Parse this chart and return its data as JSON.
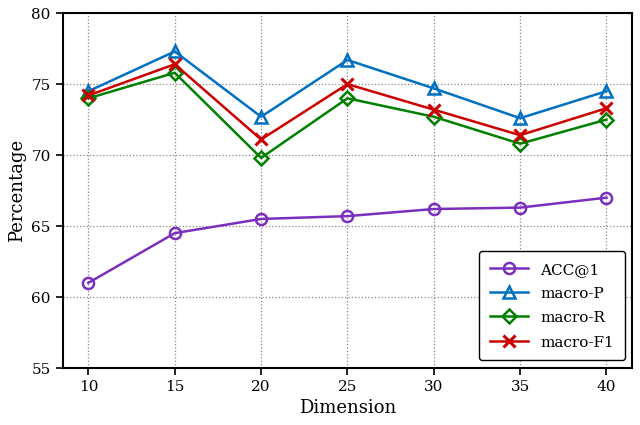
{
  "x": [
    10,
    15,
    20,
    25,
    30,
    35,
    40
  ],
  "acc1": [
    61.0,
    64.5,
    65.5,
    65.7,
    66.2,
    66.3,
    67.0
  ],
  "macro_p": [
    74.5,
    77.3,
    72.7,
    76.7,
    74.7,
    72.6,
    74.5
  ],
  "macro_r": [
    74.0,
    75.8,
    69.8,
    74.0,
    72.7,
    70.8,
    72.5
  ],
  "macro_f1": [
    74.2,
    76.4,
    71.1,
    75.0,
    73.2,
    71.4,
    73.3
  ],
  "colors": {
    "acc1": "#7B2FBE",
    "macro_p": "#0070C0",
    "macro_r": "#008000",
    "macro_f1": "#CC0000"
  },
  "xlabel": "Dimension",
  "ylabel": "Percentage",
  "ylim": [
    55,
    80
  ],
  "xlim": [
    8.5,
    41.5
  ],
  "yticks": [
    55,
    60,
    65,
    70,
    75,
    80
  ],
  "xticks": [
    10,
    15,
    20,
    25,
    30,
    35,
    40
  ],
  "legend_labels": [
    "ACC@1",
    "macro-P",
    "macro-R",
    "macro-F1"
  ]
}
